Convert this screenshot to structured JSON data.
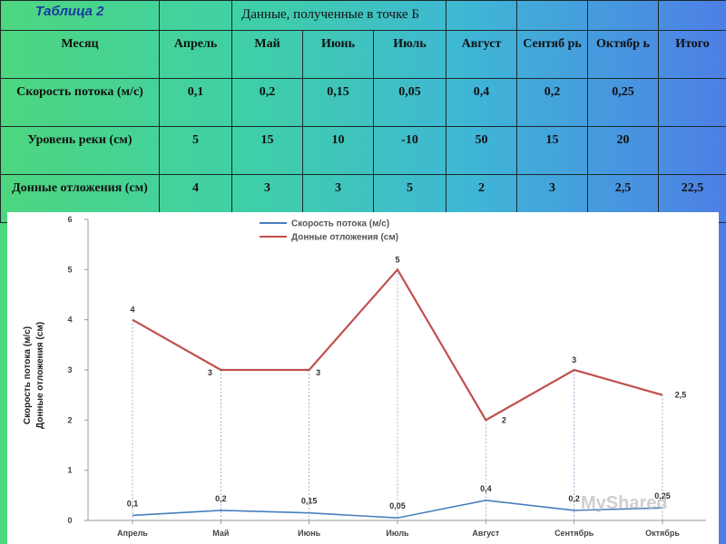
{
  "table": {
    "caption": "Таблица 2",
    "subtitle": "Данные, полученные в точке Б",
    "header": [
      "Месяц",
      "Апрель",
      "Май",
      "Июнь",
      "Июль",
      "Август",
      "Сентяб рь",
      "Октябр ь",
      "Итого"
    ],
    "rows": [
      {
        "label": "Скорость потока (м/с)",
        "cells": [
          "0,1",
          "0,2",
          "0,15",
          "0,05",
          "0,4",
          "0,2",
          "0,25",
          ""
        ]
      },
      {
        "label": "Уровень реки (см)",
        "cells": [
          "5",
          "15",
          "10",
          "-10",
          "50",
          "15",
          "20",
          ""
        ]
      },
      {
        "label": "Донные отложения (см)",
        "cells": [
          "4",
          "3",
          "3",
          "5",
          "2",
          "3",
          "2,5",
          "22,5"
        ]
      }
    ]
  },
  "chart_data": {
    "type": "line",
    "categories": [
      "Апрель",
      "Май",
      "Июнь",
      "Июль",
      "Август",
      "Сентябрь",
      "Октябрь"
    ],
    "series": [
      {
        "name": "Скорость потока (м/с)",
        "values": [
          0.1,
          0.2,
          0.15,
          0.05,
          0.4,
          0.2,
          0.25
        ],
        "labels": [
          "0,1",
          "0,2",
          "0,15",
          "0,05",
          "0,4",
          "0,2",
          "0,25"
        ],
        "color": "#4a7ebf"
      },
      {
        "name": "Донные отложения (см)",
        "values": [
          4,
          3,
          3,
          5,
          2,
          3,
          2.5
        ],
        "labels": [
          "4",
          "3",
          "3",
          "5",
          "2",
          "3",
          "2,5"
        ],
        "color": "#c0504d"
      }
    ],
    "yticks": [
      "0",
      "1",
      "2",
      "3",
      "4",
      "5",
      "6"
    ],
    "ylim": [
      0,
      6
    ],
    "ylabel_lines": [
      "Скорость потока (м/с)",
      "Донные отложения (см)"
    ],
    "legend_position": "top-center"
  },
  "watermark": "MyShared"
}
